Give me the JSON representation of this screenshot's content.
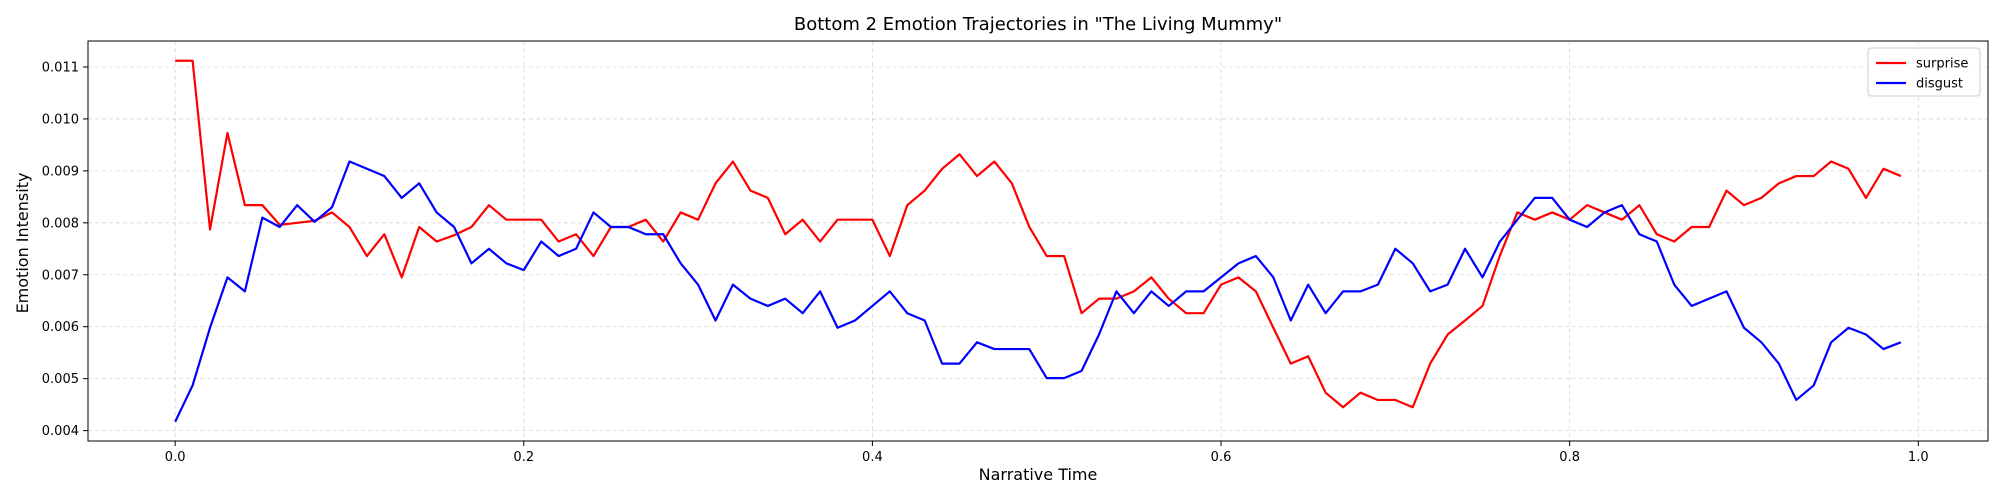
{
  "chart_data": {
    "type": "line",
    "title": "Bottom 2 Emotion Trajectories in \"The Living Mummy\"",
    "xlabel": "Narrative Time",
    "ylabel": "Emotion Intensity",
    "xlim": [
      -0.05,
      1.04
    ],
    "ylim": [
      0.0038,
      0.0115
    ],
    "xticks": [
      0.0,
      0.2,
      0.4,
      0.6,
      0.8,
      1.0
    ],
    "xtick_labels": [
      "0.0",
      "0.2",
      "0.4",
      "0.6",
      "0.8",
      "1.0"
    ],
    "yticks": [
      0.004,
      0.005,
      0.006,
      0.007,
      0.008,
      0.009,
      0.01,
      0.011
    ],
    "ytick_labels": [
      "0.004",
      "0.005",
      "0.006",
      "0.007",
      "0.008",
      "0.009",
      "0.010",
      "0.011"
    ],
    "grid": true,
    "legend_position": "top-right",
    "x": [
      0.0,
      0.01,
      0.02,
      0.03,
      0.04,
      0.05,
      0.06,
      0.07,
      0.08,
      0.09,
      0.1,
      0.11,
      0.12,
      0.13,
      0.14,
      0.15,
      0.16,
      0.17,
      0.18,
      0.19,
      0.2,
      0.21,
      0.22,
      0.23,
      0.24,
      0.25,
      0.26,
      0.27,
      0.28,
      0.29,
      0.3,
      0.31,
      0.32,
      0.33,
      0.34,
      0.35,
      0.36,
      0.37,
      0.38,
      0.39,
      0.4,
      0.41,
      0.42,
      0.43,
      0.44,
      0.45,
      0.46,
      0.47,
      0.48,
      0.49,
      0.5,
      0.51,
      0.52,
      0.53,
      0.54,
      0.55,
      0.56,
      0.57,
      0.58,
      0.59,
      0.6,
      0.61,
      0.62,
      0.63,
      0.64,
      0.65,
      0.66,
      0.67,
      0.68,
      0.69,
      0.7,
      0.71,
      0.72,
      0.73,
      0.74,
      0.75,
      0.76,
      0.77,
      0.78,
      0.79,
      0.8,
      0.81,
      0.82,
      0.83,
      0.84,
      0.85,
      0.86,
      0.87,
      0.88,
      0.89,
      0.9,
      0.91,
      0.92,
      0.93,
      0.94,
      0.95,
      0.96,
      0.97,
      0.98,
      0.99
    ],
    "series": [
      {
        "name": "surprise",
        "color": "#ff0000",
        "values": [
          0.01112,
          0.01112,
          0.00787,
          0.00973,
          0.00834,
          0.00834,
          0.00796,
          0.008,
          0.00804,
          0.0082,
          0.00792,
          0.00736,
          0.00778,
          0.00695,
          0.00792,
          0.00764,
          0.00776,
          0.00792,
          0.00834,
          0.00806,
          0.00806,
          0.00806,
          0.00764,
          0.00778,
          0.00736,
          0.00792,
          0.00792,
          0.00806,
          0.00764,
          0.0082,
          0.00806,
          0.00876,
          0.00918,
          0.00862,
          0.00848,
          0.00778,
          0.00806,
          0.00764,
          0.00806,
          0.00806,
          0.00806,
          0.00736,
          0.00834,
          0.00862,
          0.00904,
          0.00932,
          0.0089,
          0.00918,
          0.00876,
          0.00792,
          0.00736,
          0.00736,
          0.00626,
          0.00654,
          0.00654,
          0.00668,
          0.00695,
          0.00654,
          0.00626,
          0.00626,
          0.00681,
          0.00695,
          0.00668,
          0.00598,
          0.00529,
          0.00543,
          0.00473,
          0.00445,
          0.00473,
          0.00459,
          0.00459,
          0.00445,
          0.00529,
          0.00585,
          0.00612,
          0.0064,
          0.00737,
          0.0082,
          0.00806,
          0.0082,
          0.00806,
          0.00834,
          0.0082,
          0.00806,
          0.00834,
          0.00778,
          0.00764,
          0.00792,
          0.00792,
          0.00862,
          0.00834,
          0.00848,
          0.00876,
          0.0089,
          0.0089,
          0.00918,
          0.00904,
          0.00848,
          0.00904,
          0.0089
        ]
      },
      {
        "name": "disgust",
        "color": "#0000ff",
        "values": [
          0.00417,
          0.00487,
          0.00598,
          0.00695,
          0.00668,
          0.0081,
          0.00792,
          0.00834,
          0.00802,
          0.0083,
          0.00918,
          0.00904,
          0.0089,
          0.00848,
          0.00876,
          0.0082,
          0.00792,
          0.00722,
          0.0075,
          0.00722,
          0.00709,
          0.00764,
          0.00736,
          0.0075,
          0.0082,
          0.00792,
          0.00792,
          0.00778,
          0.00778,
          0.00722,
          0.00681,
          0.00612,
          0.00681,
          0.00654,
          0.0064,
          0.00654,
          0.00626,
          0.00668,
          0.00598,
          0.00612,
          0.0064,
          0.00668,
          0.00626,
          0.00612,
          0.00529,
          0.00529,
          0.0057,
          0.00557,
          0.00557,
          0.00557,
          0.00501,
          0.00501,
          0.00515,
          0.00585,
          0.00668,
          0.00626,
          0.00668,
          0.0064,
          0.00668,
          0.00668,
          0.00695,
          0.00722,
          0.00736,
          0.00695,
          0.00612,
          0.00681,
          0.00626,
          0.00668,
          0.00668,
          0.00681,
          0.0075,
          0.00722,
          0.00668,
          0.00681,
          0.0075,
          0.00695,
          0.00764,
          0.00806,
          0.00848,
          0.00848,
          0.00806,
          0.00792,
          0.0082,
          0.00834,
          0.00778,
          0.00764,
          0.00681,
          0.0064,
          0.00654,
          0.00668,
          0.00598,
          0.0057,
          0.00529,
          0.00459,
          0.00487,
          0.0057,
          0.00598,
          0.00585,
          0.00557,
          0.0057
        ]
      }
    ]
  }
}
